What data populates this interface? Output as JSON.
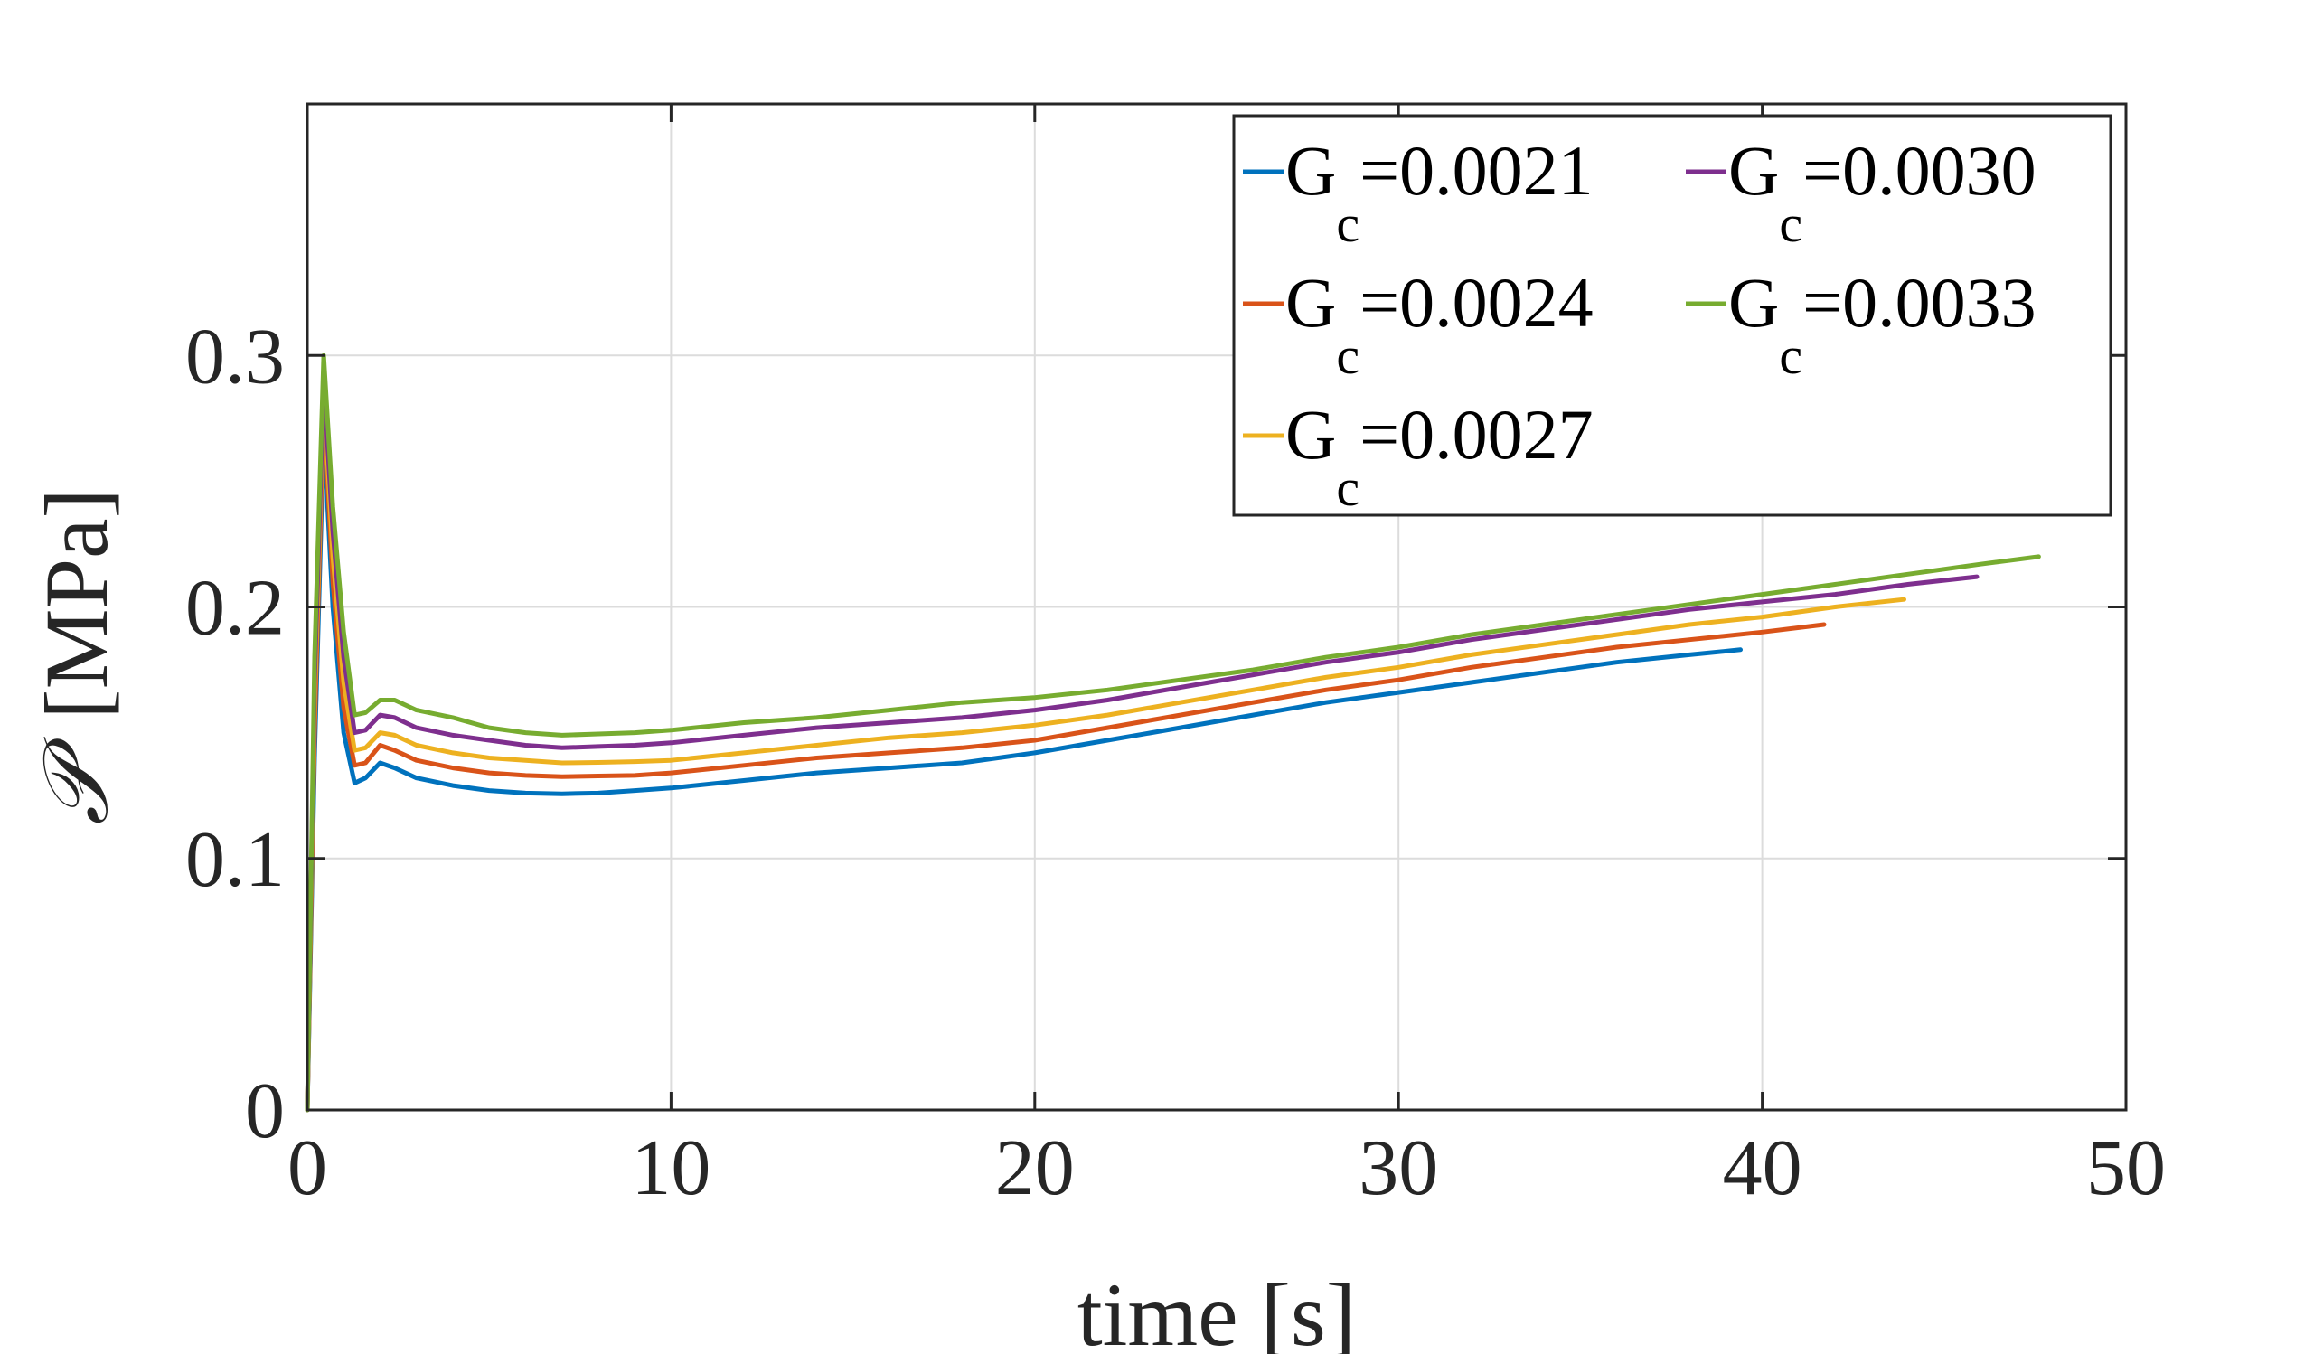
{
  "chart_data": {
    "type": "line",
    "xlabel": "time [s]",
    "ylabel_symbol": "𝒫",
    "ylabel_unit": "[MPa]",
    "xlim": [
      0,
      50
    ],
    "ylim": [
      0,
      0.4
    ],
    "xticks": [
      0,
      10,
      20,
      30,
      40,
      50
    ],
    "xtick_labels": [
      "0",
      "10",
      "20",
      "30",
      "40",
      "50"
    ],
    "yticks": [
      0,
      0.1,
      0.2,
      0.3
    ],
    "ytick_labels": [
      "0",
      "0.1",
      "0.2",
      "0.3"
    ],
    "grid": true,
    "legend_position": "top-right",
    "series": [
      {
        "name": "Gc=0.0021",
        "legend_main": "G",
        "legend_sub": "c",
        "legend_value": "=0.0021",
        "color": "#0072BD",
        "points": [
          [
            0,
            0
          ],
          [
            0.2,
            0.14
          ],
          [
            0.45,
            0.27
          ],
          [
            0.7,
            0.2
          ],
          [
            1.0,
            0.15
          ],
          [
            1.3,
            0.13
          ],
          [
            1.6,
            0.132
          ],
          [
            2.0,
            0.138
          ],
          [
            2.4,
            0.136
          ],
          [
            3,
            0.132
          ],
          [
            4,
            0.129
          ],
          [
            5,
            0.127
          ],
          [
            6,
            0.126
          ],
          [
            7,
            0.1257
          ],
          [
            8,
            0.126
          ],
          [
            9,
            0.127
          ],
          [
            10,
            0.128
          ],
          [
            12,
            0.131
          ],
          [
            14,
            0.134
          ],
          [
            16,
            0.136
          ],
          [
            18,
            0.138
          ],
          [
            20,
            0.142
          ],
          [
            22,
            0.147
          ],
          [
            24,
            0.152
          ],
          [
            26,
            0.157
          ],
          [
            28,
            0.162
          ],
          [
            30,
            0.166
          ],
          [
            32,
            0.17
          ],
          [
            34,
            0.174
          ],
          [
            36,
            0.178
          ],
          [
            38,
            0.181
          ],
          [
            39.4,
            0.183
          ]
        ]
      },
      {
        "name": "Gc=0.0024",
        "legend_main": "G",
        "legend_sub": "c",
        "legend_value": "=0.0024",
        "color": "#D95319",
        "points": [
          [
            0,
            0
          ],
          [
            0.2,
            0.15
          ],
          [
            0.45,
            0.28
          ],
          [
            0.7,
            0.21
          ],
          [
            1.0,
            0.16
          ],
          [
            1.3,
            0.137
          ],
          [
            1.6,
            0.138
          ],
          [
            2.0,
            0.145
          ],
          [
            2.4,
            0.143
          ],
          [
            3,
            0.139
          ],
          [
            4,
            0.136
          ],
          [
            5,
            0.134
          ],
          [
            6,
            0.133
          ],
          [
            7,
            0.1325
          ],
          [
            8,
            0.1328
          ],
          [
            9,
            0.133
          ],
          [
            10,
            0.134
          ],
          [
            12,
            0.137
          ],
          [
            14,
            0.14
          ],
          [
            16,
            0.142
          ],
          [
            18,
            0.144
          ],
          [
            20,
            0.147
          ],
          [
            22,
            0.152
          ],
          [
            24,
            0.157
          ],
          [
            26,
            0.162
          ],
          [
            28,
            0.167
          ],
          [
            30,
            0.171
          ],
          [
            32,
            0.176
          ],
          [
            34,
            0.18
          ],
          [
            36,
            0.184
          ],
          [
            38,
            0.187
          ],
          [
            40,
            0.19
          ],
          [
            41.7,
            0.193
          ]
        ]
      },
      {
        "name": "Gc=0.0027",
        "legend_main": "G",
        "legend_sub": "c",
        "legend_value": "=0.0027",
        "color": "#EDB120",
        "points": [
          [
            0,
            0
          ],
          [
            0.2,
            0.16
          ],
          [
            0.45,
            0.285
          ],
          [
            0.7,
            0.22
          ],
          [
            1.0,
            0.17
          ],
          [
            1.3,
            0.143
          ],
          [
            1.6,
            0.144
          ],
          [
            2.0,
            0.15
          ],
          [
            2.4,
            0.149
          ],
          [
            3,
            0.145
          ],
          [
            4,
            0.142
          ],
          [
            5,
            0.14
          ],
          [
            6,
            0.139
          ],
          [
            7,
            0.138
          ],
          [
            8,
            0.1382
          ],
          [
            9,
            0.1385
          ],
          [
            10,
            0.139
          ],
          [
            12,
            0.142
          ],
          [
            14,
            0.145
          ],
          [
            16,
            0.148
          ],
          [
            18,
            0.15
          ],
          [
            20,
            0.153
          ],
          [
            22,
            0.157
          ],
          [
            24,
            0.162
          ],
          [
            26,
            0.167
          ],
          [
            28,
            0.172
          ],
          [
            30,
            0.176
          ],
          [
            32,
            0.181
          ],
          [
            34,
            0.185
          ],
          [
            36,
            0.189
          ],
          [
            38,
            0.193
          ],
          [
            40,
            0.196
          ],
          [
            42,
            0.2
          ],
          [
            43.9,
            0.203
          ]
        ]
      },
      {
        "name": "Gc=0.0030",
        "legend_main": "G",
        "legend_sub": "c",
        "legend_value": "=0.0030",
        "color": "#7E2F8E",
        "points": [
          [
            0,
            0
          ],
          [
            0.2,
            0.17
          ],
          [
            0.45,
            0.29
          ],
          [
            0.7,
            0.23
          ],
          [
            1.0,
            0.18
          ],
          [
            1.3,
            0.15
          ],
          [
            1.6,
            0.151
          ],
          [
            2.0,
            0.157
          ],
          [
            2.4,
            0.156
          ],
          [
            3,
            0.152
          ],
          [
            4,
            0.149
          ],
          [
            5,
            0.147
          ],
          [
            6,
            0.145
          ],
          [
            7,
            0.144
          ],
          [
            8,
            0.1445
          ],
          [
            9,
            0.145
          ],
          [
            10,
            0.146
          ],
          [
            12,
            0.149
          ],
          [
            14,
            0.152
          ],
          [
            16,
            0.154
          ],
          [
            18,
            0.156
          ],
          [
            20,
            0.159
          ],
          [
            22,
            0.163
          ],
          [
            24,
            0.168
          ],
          [
            26,
            0.173
          ],
          [
            28,
            0.178
          ],
          [
            30,
            0.182
          ],
          [
            32,
            0.187
          ],
          [
            34,
            0.191
          ],
          [
            36,
            0.195
          ],
          [
            38,
            0.199
          ],
          [
            40,
            0.202
          ],
          [
            42,
            0.205
          ],
          [
            44,
            0.209
          ],
          [
            45.9,
            0.212
          ]
        ]
      },
      {
        "name": "Gc=0.0033",
        "legend_main": "G",
        "legend_sub": "c",
        "legend_value": "=0.0033",
        "color": "#77AC30",
        "points": [
          [
            0,
            0
          ],
          [
            0.2,
            0.18
          ],
          [
            0.45,
            0.3
          ],
          [
            0.7,
            0.24
          ],
          [
            1.0,
            0.19
          ],
          [
            1.3,
            0.157
          ],
          [
            1.6,
            0.158
          ],
          [
            2.0,
            0.163
          ],
          [
            2.4,
            0.163
          ],
          [
            3,
            0.159
          ],
          [
            4,
            0.156
          ],
          [
            5,
            0.152
          ],
          [
            6,
            0.15
          ],
          [
            7,
            0.149
          ],
          [
            8,
            0.1495
          ],
          [
            9,
            0.15
          ],
          [
            10,
            0.151
          ],
          [
            12,
            0.154
          ],
          [
            14,
            0.156
          ],
          [
            16,
            0.159
          ],
          [
            18,
            0.162
          ],
          [
            20,
            0.164
          ],
          [
            22,
            0.167
          ],
          [
            24,
            0.171
          ],
          [
            26,
            0.175
          ],
          [
            28,
            0.18
          ],
          [
            30,
            0.184
          ],
          [
            32,
            0.189
          ],
          [
            34,
            0.193
          ],
          [
            36,
            0.197
          ],
          [
            38,
            0.201
          ],
          [
            40,
            0.205
          ],
          [
            42,
            0.209
          ],
          [
            44,
            0.213
          ],
          [
            46,
            0.217
          ],
          [
            47.6,
            0.22
          ]
        ]
      }
    ]
  }
}
